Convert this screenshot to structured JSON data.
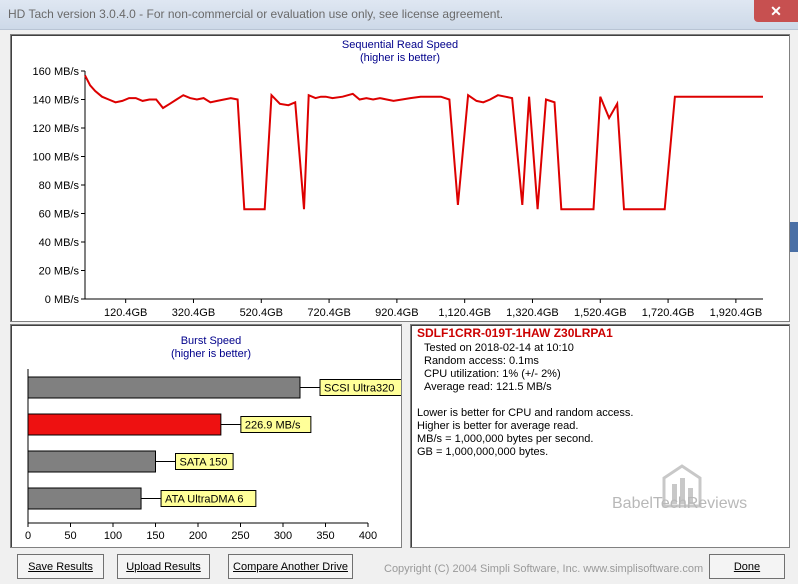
{
  "window": {
    "title": "HD Tach version 3.0.4.0  - For non-commercial or evaluation use only, see license agreement.",
    "close_glyph": "✕"
  },
  "sequential": {
    "title": "Sequential Read Speed",
    "subtitle": "(higher is better)",
    "chart_data": {
      "type": "line",
      "title": "Sequential Read Speed",
      "subtitle": "(higher is better)",
      "ylim": [
        0,
        160
      ],
      "xlim": [
        0,
        2000
      ],
      "y_ticks": [
        "0 MB/s",
        "20 MB/s",
        "40 MB/s",
        "60 MB/s",
        "80 MB/s",
        "100 MB/s",
        "120 MB/s",
        "140 MB/s",
        "160 MB/s"
      ],
      "x_ticks": [
        {
          "pos": 120,
          "label": "120.4GB"
        },
        {
          "pos": 320,
          "label": "320.4GB"
        },
        {
          "pos": 520,
          "label": "520.4GB"
        },
        {
          "pos": 720,
          "label": "720.4GB"
        },
        {
          "pos": 920,
          "label": "920.4GB"
        },
        {
          "pos": 1120,
          "label": "1,120.4GB"
        },
        {
          "pos": 1320,
          "label": "1,320.4GB"
        },
        {
          "pos": 1520,
          "label": "1,520.4GB"
        },
        {
          "pos": 1720,
          "label": "1,720.4GB"
        },
        {
          "pos": 1920,
          "label": "1,920.4GB"
        }
      ],
      "color": "#dd0000",
      "x": [
        0,
        15,
        30,
        50,
        70,
        90,
        110,
        130,
        150,
        170,
        190,
        210,
        230,
        250,
        270,
        290,
        310,
        330,
        350,
        370,
        390,
        410,
        430,
        450,
        470,
        490,
        508,
        530,
        550,
        575,
        600,
        620,
        646,
        660,
        680,
        696,
        710,
        730,
        760,
        790,
        810,
        830,
        850,
        870,
        890,
        910,
        935,
        960,
        990,
        1010,
        1030,
        1050,
        1075,
        1100,
        1130,
        1155,
        1175,
        1195,
        1218,
        1240,
        1260,
        1290,
        1310,
        1335,
        1360,
        1385,
        1405,
        1420,
        1450,
        1480,
        1500,
        1520,
        1546,
        1570,
        1590,
        1620,
        1640,
        1665,
        1690,
        1710,
        1740,
        1765,
        1795,
        1830,
        1860,
        1900,
        1930,
        1960,
        1990,
        2000
      ],
      "y": [
        157,
        150,
        146,
        142,
        140,
        138,
        139,
        141,
        141,
        139,
        140,
        140,
        134,
        137,
        140,
        143,
        141,
        140,
        141,
        138,
        139,
        140,
        141,
        140,
        63,
        63,
        63,
        63,
        143,
        137,
        136,
        138,
        63,
        143,
        141,
        142,
        142,
        141,
        142,
        144,
        140,
        141,
        140,
        141,
        140,
        139,
        140,
        141,
        142,
        142,
        142,
        142,
        140,
        66,
        143,
        139,
        138,
        140,
        143,
        142,
        141,
        66,
        142,
        63,
        140,
        138,
        63,
        63,
        63,
        63,
        63,
        142,
        127,
        137,
        63,
        63,
        63,
        63,
        63,
        63,
        142,
        142,
        142,
        142,
        142,
        142,
        142,
        142,
        142,
        142
      ]
    }
  },
  "burst": {
    "title": "Burst Speed",
    "subtitle": "(higher is better)",
    "chart_data": {
      "type": "bar",
      "orientation": "horizontal",
      "title": "Burst Speed",
      "subtitle": "(higher is better)",
      "xlim": [
        0,
        400
      ],
      "x_ticks": [
        "0",
        "50",
        "100",
        "150",
        "200",
        "250",
        "300",
        "350",
        "400"
      ],
      "bars": [
        {
          "label": "SCSI Ultra320",
          "value": 320,
          "color": "#808080"
        },
        {
          "label": "226.9 MB/s",
          "value": 226.9,
          "color": "#ee1111"
        },
        {
          "label": "SATA 150",
          "value": 150,
          "color": "#808080"
        },
        {
          "label": "ATA UltraDMA 6",
          "value": 133,
          "color": "#808080"
        }
      ]
    }
  },
  "info": {
    "drive": "SDLF1CRR-019T-1HAW Z30LRPA1",
    "tested": "Tested on 2018-02-14 at 10:10",
    "random_access": "Random access: 0.1ms",
    "cpu": "CPU utilization: 1% (+/- 2%)",
    "avg_read": "Average read: 121.5 MB/s",
    "note1": "Lower is better for CPU and random access.",
    "note2": "Higher is better for average read.",
    "note3": "MB/s = 1,000,000 bytes per second.",
    "note4": "GB = 1,000,000,000 bytes."
  },
  "buttons": {
    "save": "Save Results",
    "upload": "Upload Results",
    "compare": "Compare Another Drive",
    "done": "Done"
  },
  "copyright": "Copyright (C) 2004 Simpli Software, Inc. www.simplisoftware.com",
  "watermark": "BabelTechReviews"
}
